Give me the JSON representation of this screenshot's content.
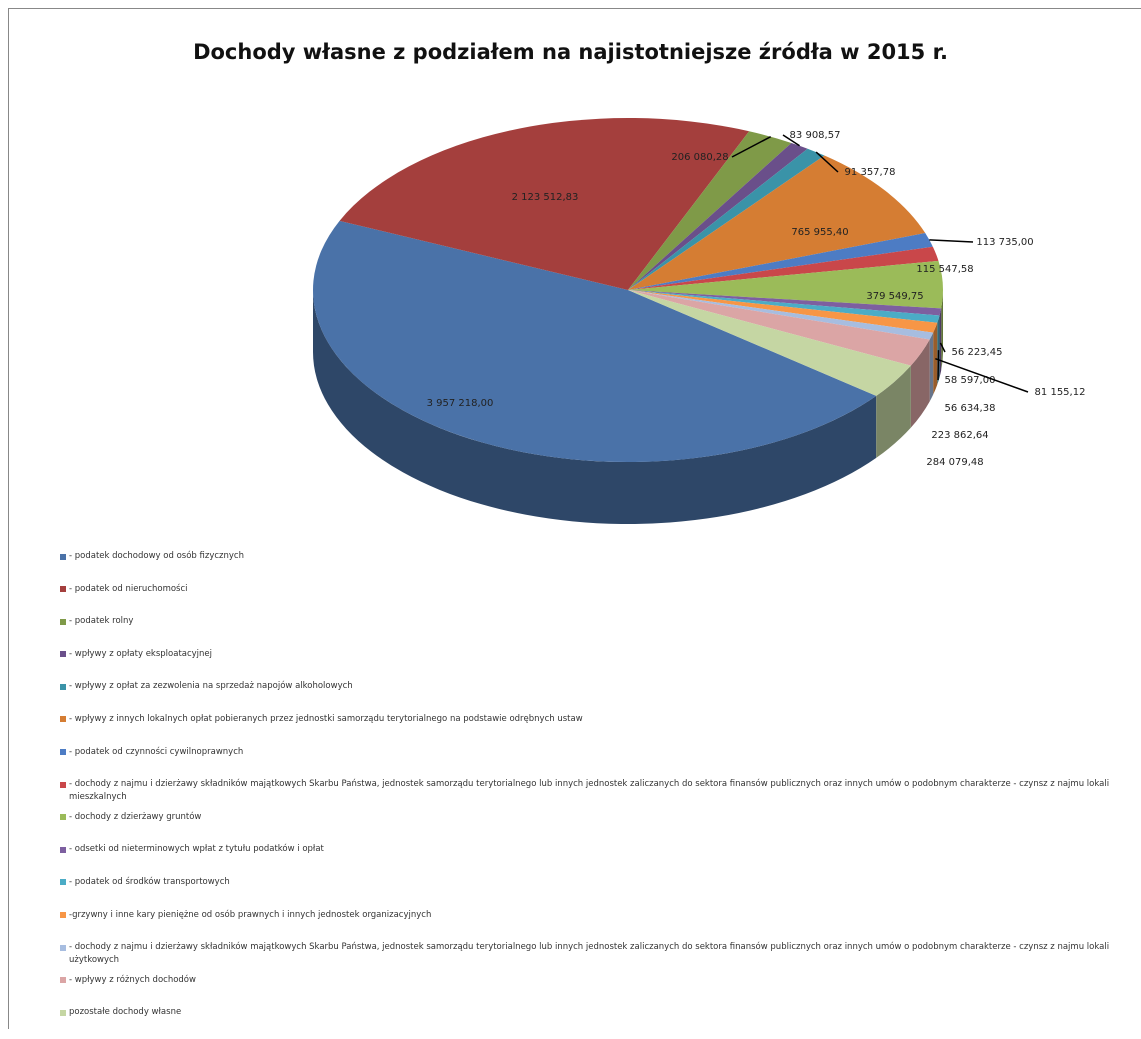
{
  "chart_data": {
    "type": "pie",
    "title": "Dochody własne z podziałem na najistotniejsze źródła w 2015 r.",
    "series": [
      {
        "name": "- podatek dochodowy od osób fizycznych",
        "color": "#4a72a8",
        "values": [
          3957218.0
        ],
        "value_labels": [
          "3 957 218,00"
        ]
      },
      {
        "name": "-  podatek od nieruchomości",
        "color": "#a43f3d",
        "values": [
          2123512.83
        ],
        "value_labels": [
          "2 123 512,83"
        ]
      },
      {
        "name": "-  podatek rolny",
        "color": "#7f9a48",
        "values": [
          206080.28
        ],
        "value_labels": [
          "206 080,28"
        ]
      },
      {
        "name": "- wpływy z opłaty eksploatacyjnej",
        "color": "#6a4f8a",
        "values": [
          83908.57
        ],
        "value_labels": [
          "83 908,57"
        ]
      },
      {
        "name": "- wpływy z opłat za zezwolenia na sprzedaż napojów alkoholowych",
        "color": "#3a93a8",
        "values": [
          91357.78
        ],
        "value_labels": [
          "91 357,78"
        ]
      },
      {
        "name": "- wpływy z innych lokalnych opłat pobieranych przez jednostki samorządu terytorialnego na podstawie odrębnych ustaw",
        "color": "#d57d33",
        "values": [
          765955.4
        ],
        "value_labels": [
          "765 955,40"
        ]
      },
      {
        "name": "- podatek od czynności cywilnoprawnych",
        "color": "#4d7cc4",
        "values": [
          113735.0
        ],
        "value_labels": [
          "113 735,00"
        ]
      },
      {
        "name": "- dochody z najmu i dzierżawy składników majątkowych Skarbu Państwa, jednostek samorządu terytorialnego lub innych jednostek zaliczanych do sektora finansów publicznych oraz innych umów o podobnym charakterze - czynsz z najmu lokali mieszkalnych",
        "color": "#c9474a",
        "values": [
          115547.58
        ],
        "value_labels": [
          "115 547,58"
        ]
      },
      {
        "name": "- dochody z dzierżawy gruntów",
        "color": "#9bbb59",
        "values": [
          379549.75
        ],
        "value_labels": [
          "379 549,75"
        ]
      },
      {
        "name": "- odsetki od nieterminowych wpłat z tytułu podatków i opłat",
        "color": "#7d5fa0",
        "values": [
          56223.45
        ],
        "value_labels": [
          "56 223,45"
        ]
      },
      {
        "name": "- podatek od środków transportowych",
        "color": "#4bacc6",
        "values": [
          58597.0
        ],
        "value_labels": [
          "58 597,00"
        ]
      },
      {
        "name": "-grzywny i inne kary pieniężne od osób prawnych i innych jednostek organizacyjnych",
        "color": "#f79646",
        "values": [
          81155.12
        ],
        "value_labels": [
          "81 155,12"
        ]
      },
      {
        "name": "- dochody z najmu i dzierżawy składników majątkowych Skarbu Państwa, jednostek samorządu terytorialnego lub innych jednostek zaliczanych do sektora finansów publicznych oraz innych umów o podobnym charakterze - czynsz z najmu lokali użytkowych",
        "color": "#a7bde0",
        "values": [
          56634.38
        ],
        "value_labels": [
          "56 634,38"
        ]
      },
      {
        "name": "- wpływy z różnych dochodów",
        "color": "#dba5a5",
        "values": [
          223862.64
        ],
        "value_labels": [
          "223 862,64"
        ]
      },
      {
        "name": "pozostałe dochody własne",
        "color": "#c5d6a3",
        "values": [
          284079.48
        ],
        "value_labels": [
          "284 079,48"
        ]
      }
    ]
  }
}
